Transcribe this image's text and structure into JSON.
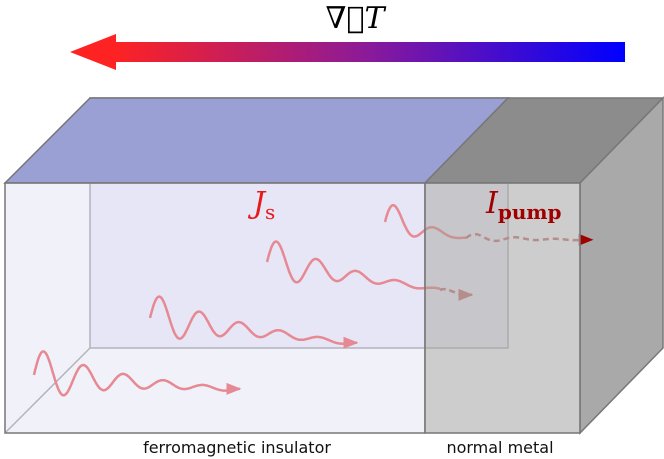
{
  "gradient_label": "∇⃗T",
  "spin_current": {
    "main": "J",
    "sub": "s"
  },
  "pump_current": {
    "main": "I",
    "sub": "pump"
  },
  "regions": [
    "ferromagnetic insulator",
    "normal metal"
  ]
}
